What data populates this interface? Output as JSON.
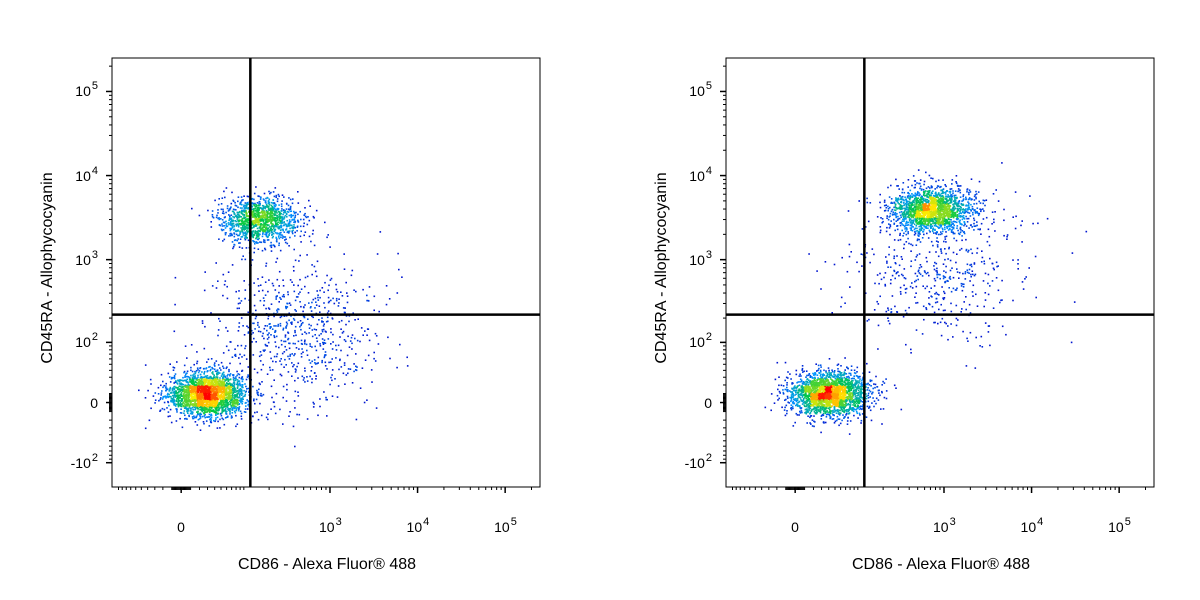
{
  "chart_data": [
    {
      "type": "scatter",
      "subtype": "flow-cytometry-density-dot-plot",
      "xlabel": "CD86 - Alexa Fluor® 488",
      "ylabel": "CD45RA - Allophycocyanin",
      "x_scale": "biexponential",
      "y_scale": "biexponential",
      "xlim": [
        -120,
        250000
      ],
      "ylim": [
        -200,
        250000
      ],
      "x_ticks": [
        {
          "value": 0,
          "base": "0",
          "exp": ""
        },
        {
          "value": 1000,
          "base": "10",
          "exp": "3"
        },
        {
          "value": 10000,
          "base": "10",
          "exp": "4"
        },
        {
          "value": 100000,
          "base": "10",
          "exp": "5"
        }
      ],
      "y_ticks": [
        {
          "value": -100,
          "base": "-10",
          "exp": "2"
        },
        {
          "value": 0,
          "base": "0",
          "exp": ""
        },
        {
          "value": 100,
          "base": "10",
          "exp": "2"
        },
        {
          "value": 1000,
          "base": "10",
          "exp": "3"
        },
        {
          "value": 10000,
          "base": "10",
          "exp": "4"
        },
        {
          "value": 100000,
          "base": "10",
          "exp": "5"
        }
      ],
      "quadrant_gate": {
        "x": 120,
        "y": 220
      },
      "populations": [
        {
          "x_center": 30,
          "y_center": 10,
          "density": "high",
          "events": 2400
        },
        {
          "x_center": 150,
          "y_center": 3000,
          "density": "high",
          "events": 1300
        },
        {
          "x_center": 400,
          "y_center": 150,
          "density": "low",
          "events": 700
        }
      ],
      "color_scale": [
        "#0000cc",
        "#00a0ff",
        "#00cc44",
        "#ffee00",
        "#ff0000"
      ]
    },
    {
      "type": "scatter",
      "subtype": "flow-cytometry-density-dot-plot",
      "xlabel": "CD86 - Alexa Fluor® 488",
      "ylabel": "CD45RA - Allophycocyanin",
      "x_scale": "biexponential",
      "y_scale": "biexponential",
      "xlim": [
        -120,
        250000
      ],
      "ylim": [
        -200,
        250000
      ],
      "x_ticks": [
        {
          "value": 0,
          "base": "0",
          "exp": ""
        },
        {
          "value": 1000,
          "base": "10",
          "exp": "3"
        },
        {
          "value": 10000,
          "base": "10",
          "exp": "4"
        },
        {
          "value": 100000,
          "base": "10",
          "exp": "5"
        }
      ],
      "y_ticks": [
        {
          "value": -100,
          "base": "-10",
          "exp": "2"
        },
        {
          "value": 0,
          "base": "0",
          "exp": ""
        },
        {
          "value": 100,
          "base": "10",
          "exp": "2"
        },
        {
          "value": 1000,
          "base": "10",
          "exp": "3"
        },
        {
          "value": 10000,
          "base": "10",
          "exp": "4"
        },
        {
          "value": 100000,
          "base": "10",
          "exp": "5"
        }
      ],
      "quadrant_gate": {
        "x": 120,
        "y": 220
      },
      "populations": [
        {
          "x_center": 40,
          "y_center": 10,
          "density": "high",
          "events": 2300
        },
        {
          "x_center": 700,
          "y_center": 4000,
          "density": "very-high",
          "events": 1800
        },
        {
          "x_center": 900,
          "y_center": 800,
          "density": "low",
          "events": 500
        }
      ],
      "color_scale": [
        "#0000cc",
        "#00a0ff",
        "#00cc44",
        "#ffee00",
        "#ff0000"
      ]
    }
  ]
}
